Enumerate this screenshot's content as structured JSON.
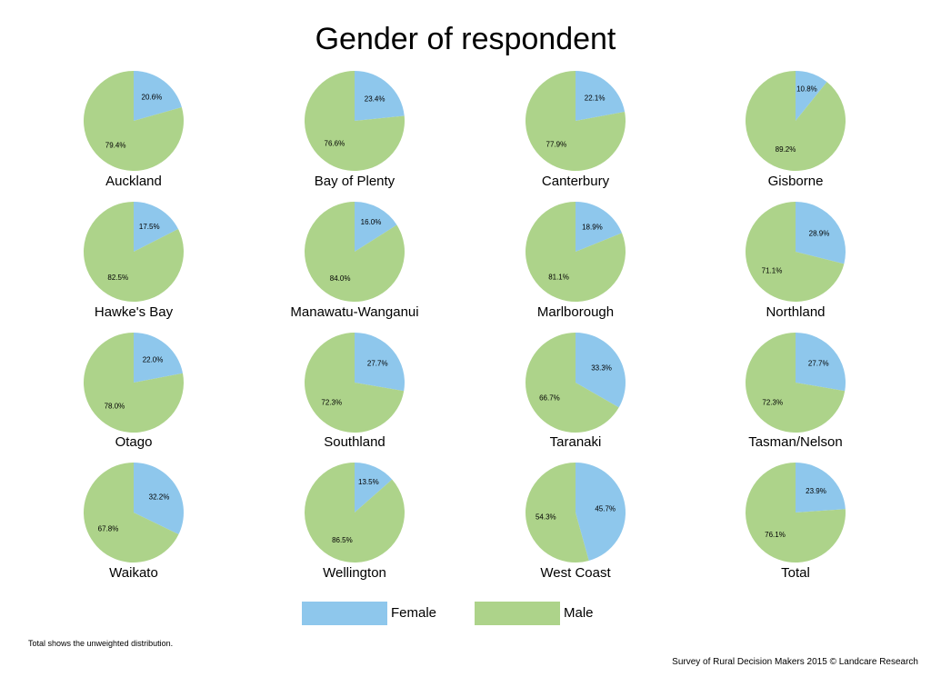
{
  "title": "Gender of respondent",
  "chart_data": {
    "type": "pie",
    "title": "Gender of respondent",
    "series_names": [
      "Female",
      "Male"
    ],
    "colors": {
      "Female": "#8ec7ec",
      "Male": "#add38a"
    },
    "charts": [
      {
        "name": "Auckland",
        "values": [
          20.6,
          79.4
        ],
        "labels": [
          "20.6%",
          "79.4%"
        ]
      },
      {
        "name": "Bay of Plenty",
        "values": [
          23.4,
          76.6
        ],
        "labels": [
          "23.4%",
          "76.6%"
        ]
      },
      {
        "name": "Canterbury",
        "values": [
          22.1,
          77.9
        ],
        "labels": [
          "22.1%",
          "77.9%"
        ]
      },
      {
        "name": "Gisborne",
        "values": [
          10.8,
          89.2
        ],
        "labels": [
          "10.8%",
          "89.2%"
        ]
      },
      {
        "name": "Hawke's Bay",
        "values": [
          17.5,
          82.5
        ],
        "labels": [
          "17.5%",
          "82.5%"
        ]
      },
      {
        "name": "Manawatu-Wanganui",
        "values": [
          16.0,
          84.0
        ],
        "labels": [
          "16.0%",
          "84.0%"
        ]
      },
      {
        "name": "Marlborough",
        "values": [
          18.9,
          81.1
        ],
        "labels": [
          "18.9%",
          "81.1%"
        ]
      },
      {
        "name": "Northland",
        "values": [
          28.9,
          71.1
        ],
        "labels": [
          "28.9%",
          "71.1%"
        ]
      },
      {
        "name": "Otago",
        "values": [
          22.0,
          78.0
        ],
        "labels": [
          "22.0%",
          "78.0%"
        ]
      },
      {
        "name": "Southland",
        "values": [
          27.7,
          72.3
        ],
        "labels": [
          "27.7%",
          "72.3%"
        ]
      },
      {
        "name": "Taranaki",
        "values": [
          33.3,
          66.7
        ],
        "labels": [
          "33.3%",
          "66.7%"
        ]
      },
      {
        "name": "Tasman/Nelson",
        "values": [
          27.7,
          72.3
        ],
        "labels": [
          "27.7%",
          "72.3%"
        ]
      },
      {
        "name": "Waikato",
        "values": [
          32.2,
          67.8
        ],
        "labels": [
          "32.2%",
          "67.8%"
        ]
      },
      {
        "name": "Wellington",
        "values": [
          13.5,
          86.5
        ],
        "labels": [
          "13.5%",
          "86.5%"
        ]
      },
      {
        "name": "West Coast",
        "values": [
          45.7,
          54.3
        ],
        "labels": [
          "45.7%",
          "54.3%"
        ]
      },
      {
        "name": "Total",
        "values": [
          23.9,
          76.1
        ],
        "labels": [
          "23.9%",
          "76.1%"
        ]
      }
    ],
    "legend_position": "bottom"
  },
  "legend": {
    "female": "Female",
    "male": "Male"
  },
  "footnote": "Total shows the unweighted distribution.",
  "source": "Survey of Rural Decision Makers 2015 © Landcare Research"
}
